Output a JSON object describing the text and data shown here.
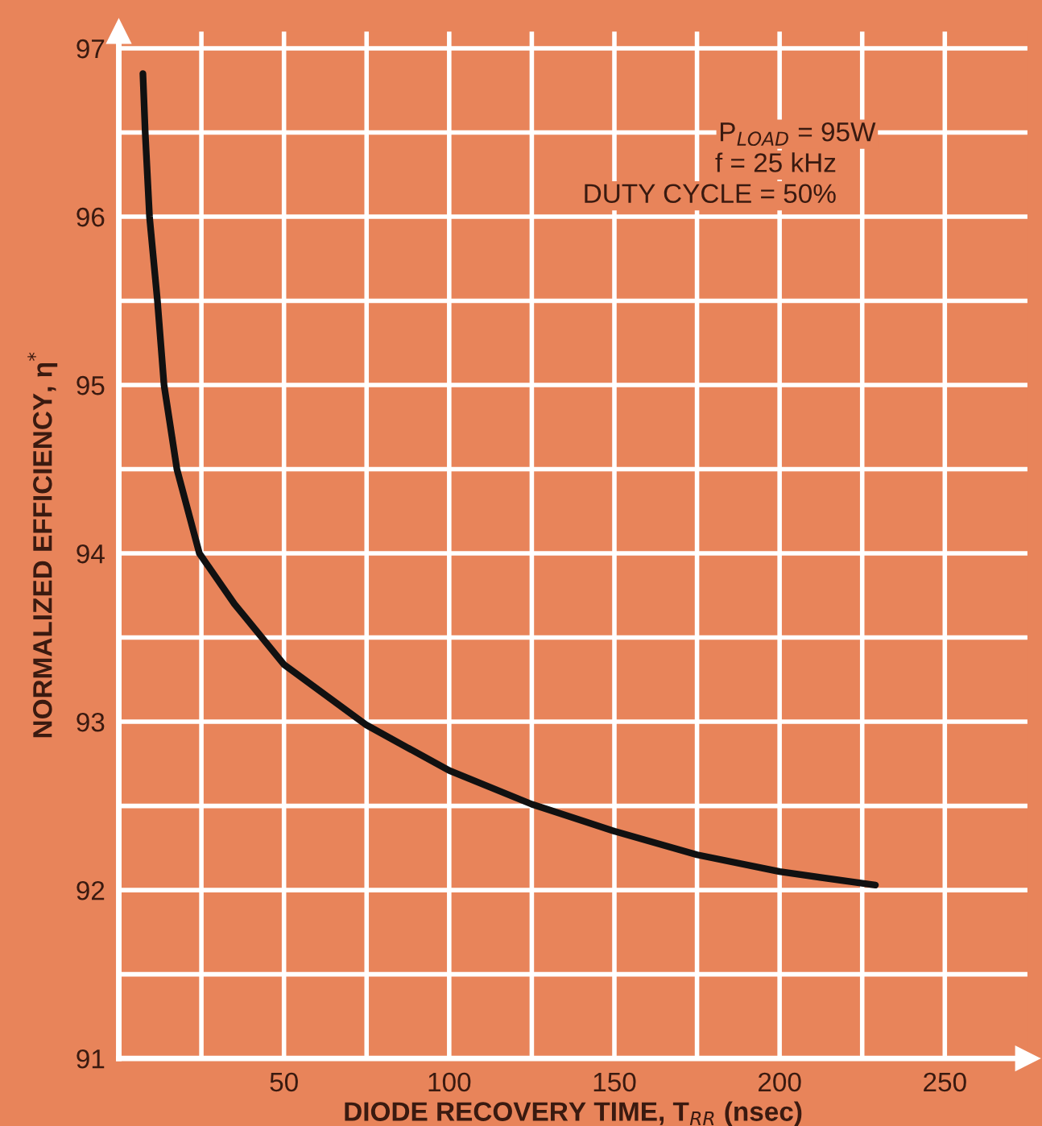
{
  "chart_data": {
    "type": "line",
    "xlabel": "DIODE RECOVERY TIME, T$_{RR}$ (nsec)",
    "ylabel": "NORMALIZED EFFICIENCY, η$^{*}$",
    "annotations": [
      "P$_{LOAD}$ = 95W",
      "f = 25 kHz",
      "DUTY CYCLE = 50%"
    ],
    "series": [
      {
        "color": "#111111",
        "x": [
          7.3,
          8,
          9.3,
          11.7,
          13.7,
          17.6,
          24.4,
          35,
          50,
          75,
          100,
          125,
          150,
          175,
          200,
          225,
          229
        ],
        "values": [
          96.85,
          96.5,
          96.0,
          95.5,
          95.0,
          94.5,
          94.0,
          93.7,
          93.34,
          92.98,
          92.71,
          92.51,
          92.35,
          92.21,
          92.11,
          92.04,
          92.03
        ]
      }
    ],
    "xlim": [
      0,
      275
    ],
    "ylim": [
      91,
      97.1
    ],
    "xticks": [
      {
        "value": 0,
        "label": null
      },
      {
        "value": 25,
        "label": null
      },
      50,
      {
        "value": 75,
        "label": null
      },
      100,
      {
        "value": 125,
        "label": null
      },
      150,
      {
        "value": 175,
        "label": null
      },
      200,
      {
        "value": 225,
        "label": null
      },
      250
    ],
    "yticks": [
      91,
      {
        "value": 91.5,
        "label": null
      },
      92,
      {
        "value": 92.5,
        "label": null
      },
      93,
      {
        "value": 93.5,
        "label": null
      },
      94,
      {
        "value": 94.5,
        "label": null
      },
      95,
      {
        "value": 95.5,
        "label": null
      },
      96,
      {
        "value": 96.5,
        "label": null
      },
      97
    ],
    "grid": true,
    "marker": "none",
    "line_style": "solid",
    "legend": false
  }
}
